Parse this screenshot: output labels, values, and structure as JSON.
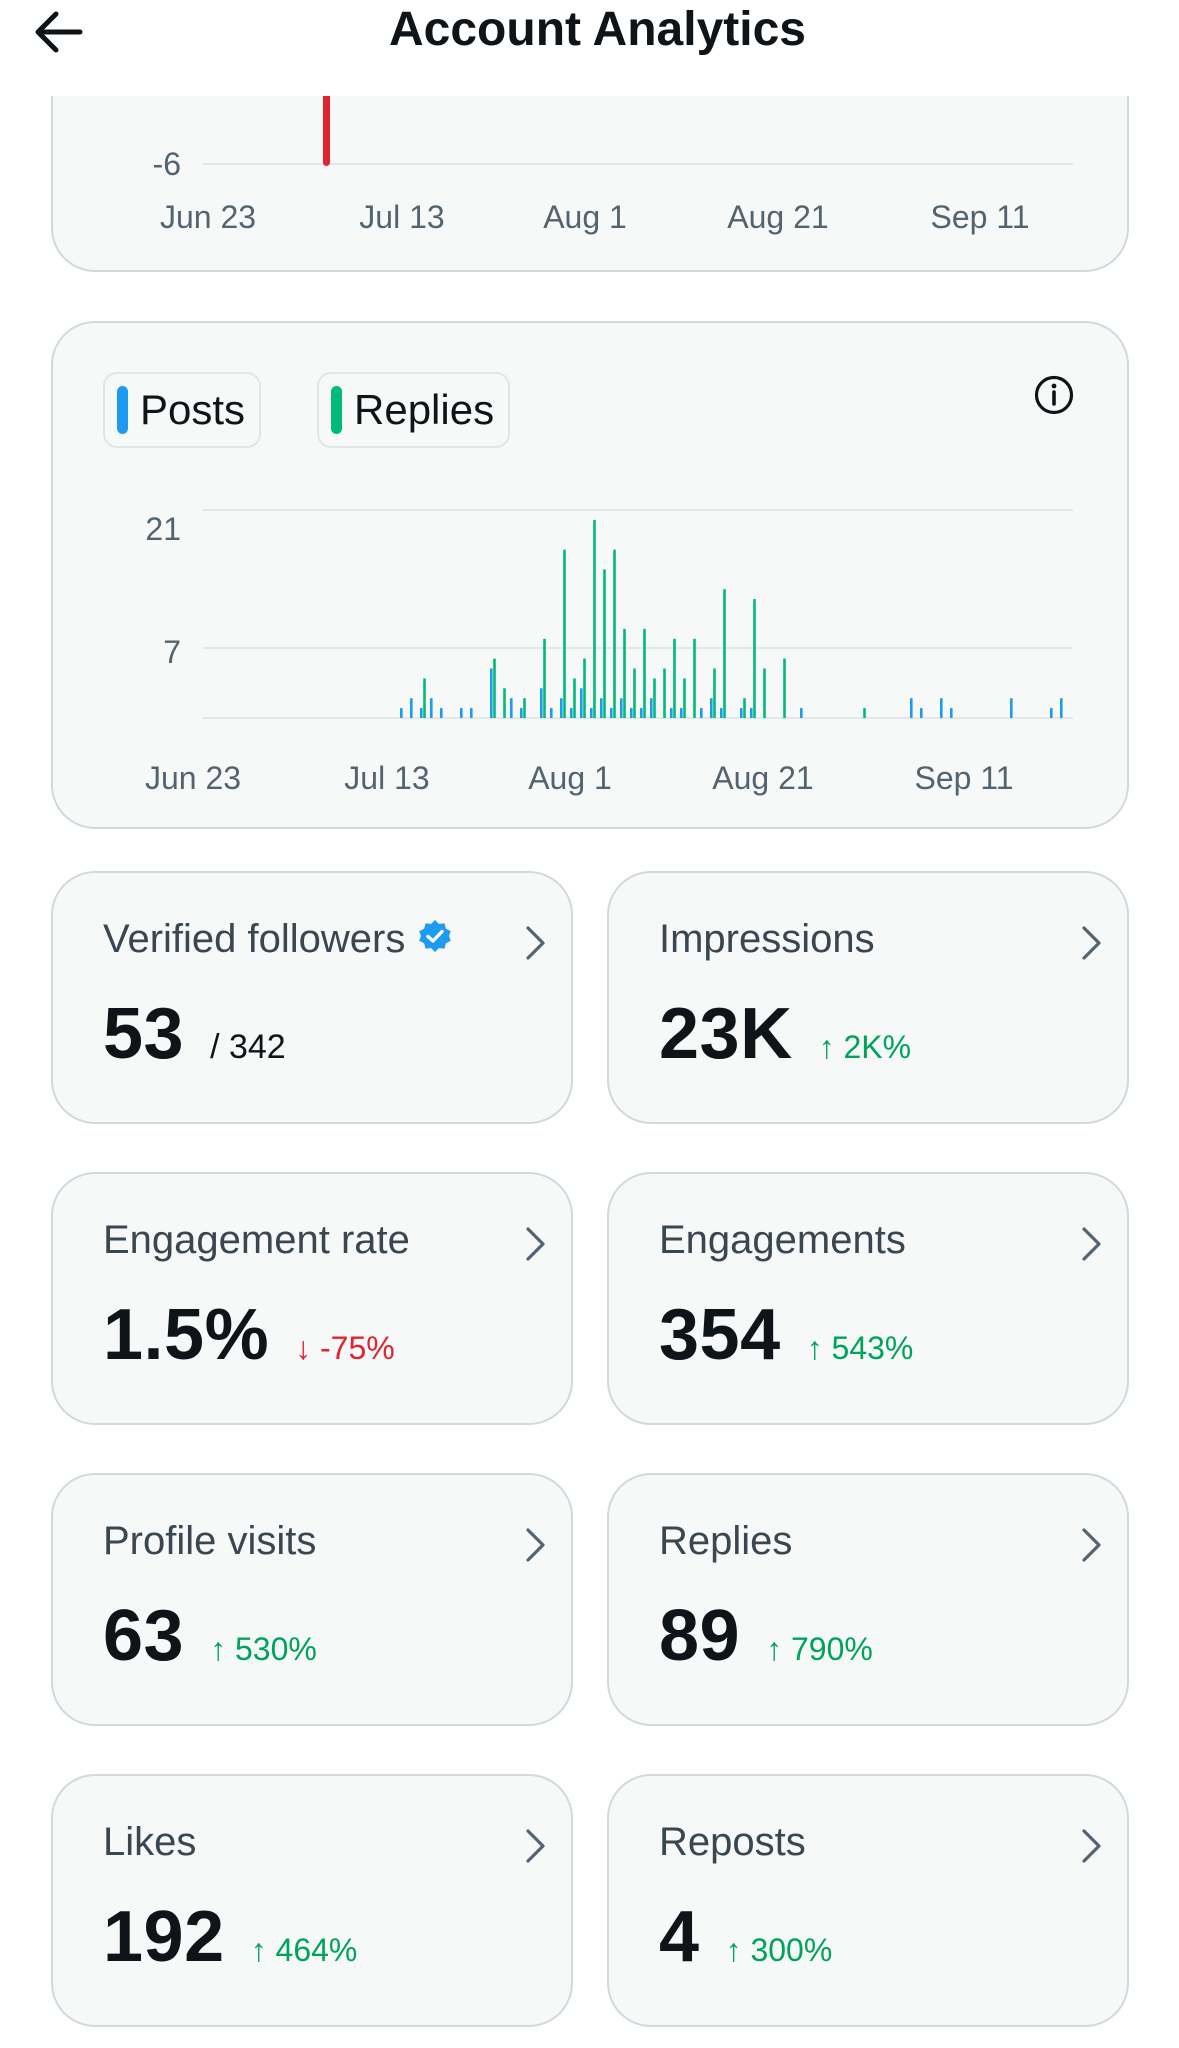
{
  "header": {
    "title": "Account Analytics",
    "back_icon": "arrow-left-icon"
  },
  "top_chart": {
    "y_tick": "-6",
    "x_ticks": [
      "Jun 23",
      "Jul 13",
      "Aug 1",
      "Aug 21",
      "Sep 11"
    ],
    "marker_color": "#e0232e"
  },
  "chart_data": {
    "type": "bar",
    "legend": [
      "Posts",
      "Replies"
    ],
    "series_colors": {
      "Posts": "#1d9bf0",
      "Replies": "#00ba7c"
    },
    "y_ticks": [
      "21",
      "7"
    ],
    "ylim": [
      0,
      21
    ],
    "x_ticks": [
      "Jun 23",
      "Jul 13",
      "Aug 1",
      "Aug 21",
      "Sep 11"
    ],
    "x_domain": [
      "Jun 23",
      "Sep 17"
    ],
    "series": [
      {
        "name": "Posts",
        "points": [
          [
            "Jul 13",
            1
          ],
          [
            "Jul 14",
            2
          ],
          [
            "Jul 15",
            1
          ],
          [
            "Jul 16",
            2
          ],
          [
            "Jul 17",
            1
          ],
          [
            "Jul 19",
            1
          ],
          [
            "Jul 20",
            1
          ],
          [
            "Jul 22",
            5
          ],
          [
            "Jul 24",
            2
          ],
          [
            "Jul 25",
            1
          ],
          [
            "Jul 27",
            3
          ],
          [
            "Jul 28",
            1
          ],
          [
            "Jul 29",
            2
          ],
          [
            "Jul 30",
            1
          ],
          [
            "Jul 31",
            3
          ],
          [
            "Aug 1",
            1
          ],
          [
            "Aug 2",
            2
          ],
          [
            "Aug 3",
            1
          ],
          [
            "Aug 4",
            2
          ],
          [
            "Aug 5",
            1
          ],
          [
            "Aug 6",
            1
          ],
          [
            "Aug 7",
            2
          ],
          [
            "Aug 9",
            1
          ],
          [
            "Aug 10",
            1
          ],
          [
            "Aug 12",
            1
          ],
          [
            "Aug 13",
            2
          ],
          [
            "Aug 14",
            1
          ],
          [
            "Aug 16",
            1
          ],
          [
            "Aug 17",
            1
          ],
          [
            "Aug 22",
            1
          ],
          [
            "Sep 2",
            2
          ],
          [
            "Sep 3",
            1
          ],
          [
            "Sep 5",
            2
          ],
          [
            "Sep 6",
            1
          ],
          [
            "Sep 12",
            2
          ],
          [
            "Sep 16",
            1
          ],
          [
            "Sep 17",
            2
          ]
        ]
      },
      {
        "name": "Replies",
        "points": [
          [
            "Jul 15",
            4
          ],
          [
            "Jul 22",
            6
          ],
          [
            "Jul 23",
            3
          ],
          [
            "Jul 25",
            2
          ],
          [
            "Jul 27",
            8
          ],
          [
            "Jul 29",
            17
          ],
          [
            "Jul 30",
            4
          ],
          [
            "Jul 31",
            6
          ],
          [
            "Aug 1",
            20
          ],
          [
            "Aug 2",
            15
          ],
          [
            "Aug 3",
            17
          ],
          [
            "Aug 4",
            9
          ],
          [
            "Aug 5",
            5
          ],
          [
            "Aug 6",
            9
          ],
          [
            "Aug 7",
            4
          ],
          [
            "Aug 8",
            5
          ],
          [
            "Aug 9",
            8
          ],
          [
            "Aug 10",
            4
          ],
          [
            "Aug 11",
            8
          ],
          [
            "Aug 13",
            5
          ],
          [
            "Aug 14",
            13
          ],
          [
            "Aug 16",
            2
          ],
          [
            "Aug 17",
            12
          ],
          [
            "Aug 18",
            5
          ],
          [
            "Aug 20",
            6
          ],
          [
            "Aug 28",
            1
          ]
        ]
      }
    ]
  },
  "metrics": [
    {
      "label": "Verified followers",
      "value": "53",
      "total": "/ 342",
      "change": "",
      "direction": "none",
      "verified": true
    },
    {
      "label": "Impressions",
      "value": "23K",
      "change": "↑ 2K%",
      "direction": "up"
    },
    {
      "label": "Engagement rate",
      "value": "1.5%",
      "change": "↓ -75%",
      "direction": "down"
    },
    {
      "label": "Engagements",
      "value": "354",
      "change": "↑ 543%",
      "direction": "up"
    },
    {
      "label": "Profile visits",
      "value": "63",
      "change": "↑ 530%",
      "direction": "up"
    },
    {
      "label": "Replies",
      "value": "89",
      "change": "↑ 790%",
      "direction": "up"
    },
    {
      "label": "Likes",
      "value": "192",
      "change": "↑ 464%",
      "direction": "up"
    },
    {
      "label": "Reposts",
      "value": "4",
      "change": "↑ 300%",
      "direction": "up"
    }
  ]
}
